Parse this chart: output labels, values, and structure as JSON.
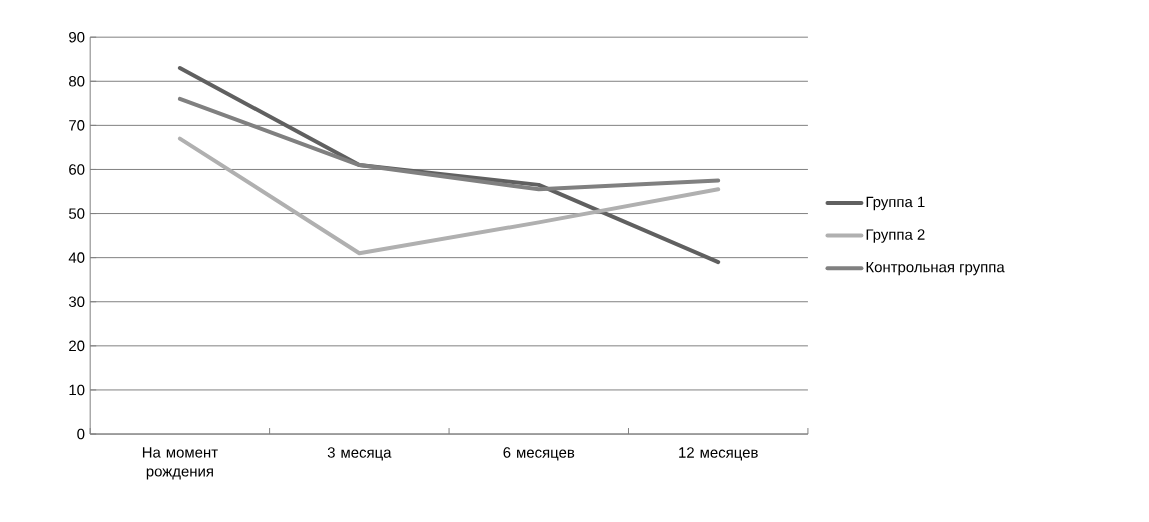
{
  "chart_data": {
    "type": "line",
    "categories": [
      "На момент рождения",
      "3 месяца",
      "6 месяцев",
      "12 месяцев"
    ],
    "series": [
      {
        "name": "Группа 1",
        "color": "#606060",
        "values": [
          83,
          61,
          56.5,
          39
        ]
      },
      {
        "name": "Группа 2",
        "color": "#b0b0b0",
        "values": [
          67,
          41,
          48,
          55.5
        ]
      },
      {
        "name": "Контрольная группа",
        "color": "#808080",
        "values": [
          76,
          61,
          55.5,
          57.5
        ]
      }
    ],
    "ylim": [
      0,
      90
    ],
    "yticks": [
      0,
      10,
      20,
      30,
      40,
      50,
      60,
      70,
      80,
      90
    ],
    "grid": "y",
    "legend": "right",
    "marker": "none",
    "line_style": "solid"
  }
}
